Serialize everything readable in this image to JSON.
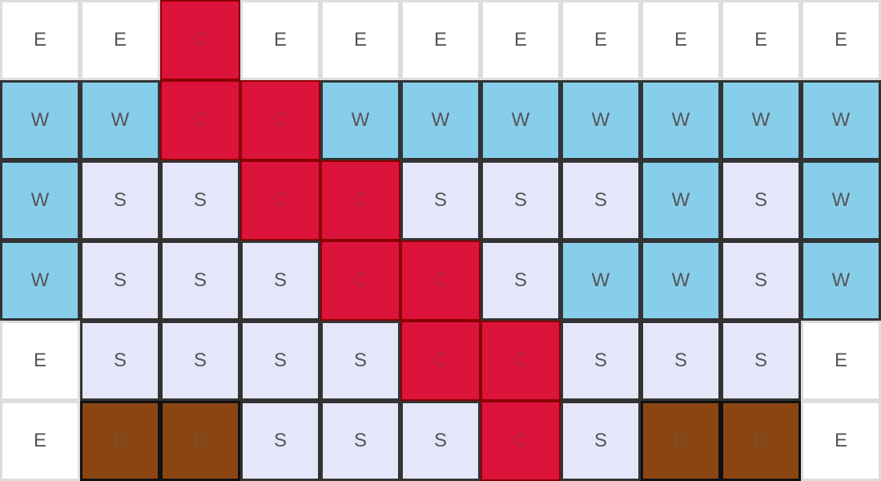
{
  "tile_types": {
    "E": {
      "fill": "#ffffff",
      "border": "#dddddd",
      "text": "#555555"
    },
    "W": {
      "fill": "#87ceeb",
      "border": "#333333",
      "text": "#555555"
    },
    "S": {
      "fill": "#e6e6fa",
      "border": "#333333",
      "text": "#555555"
    },
    "C": {
      "fill": "#dc143c",
      "border": "#8b0000",
      "text": "#b02540"
    },
    "D": {
      "fill": "#8b4513",
      "border": "#111111",
      "text": "#7a5030"
    }
  },
  "grid": [
    [
      "E",
      "E",
      "C",
      "E",
      "E",
      "E",
      "E",
      "E",
      "E",
      "E",
      "E"
    ],
    [
      "W",
      "W",
      "C",
      "C",
      "W",
      "W",
      "W",
      "W",
      "W",
      "W",
      "W"
    ],
    [
      "W",
      "S",
      "S",
      "C",
      "C",
      "S",
      "S",
      "S",
      "W",
      "S",
      "W"
    ],
    [
      "W",
      "S",
      "S",
      "S",
      "C",
      "C",
      "S",
      "W",
      "W",
      "S",
      "W"
    ],
    [
      "E",
      "S",
      "S",
      "S",
      "S",
      "C",
      "C",
      "S",
      "S",
      "S",
      "E"
    ],
    [
      "E",
      "D",
      "D",
      "S",
      "S",
      "S",
      "C",
      "S",
      "D",
      "D",
      "E"
    ]
  ]
}
